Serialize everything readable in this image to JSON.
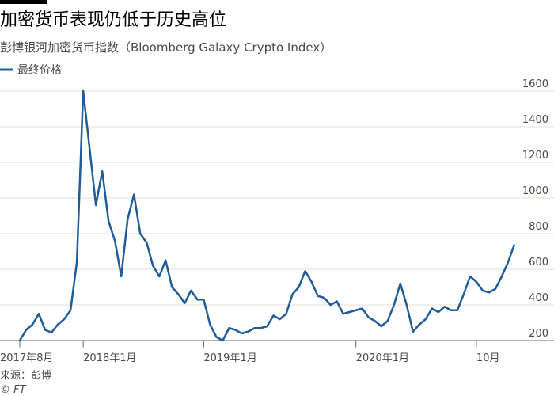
{
  "chart_data": {
    "type": "line",
    "title": "加密货币表现仍低于历史高位",
    "subtitle": "彭博银河加密货币指数（Bloomberg Galaxy Crypto Index）",
    "source": "来源：彭博",
    "credit": "© FT",
    "categories": [
      "2017年8月",
      null,
      null,
      null,
      null,
      null,
      null,
      null,
      null,
      null,
      "2018年1月",
      null,
      null,
      null,
      null,
      null,
      null,
      null,
      null,
      null,
      null,
      null,
      null,
      null,
      null,
      null,
      null,
      null,
      null,
      "2019年1月",
      null,
      null,
      null,
      null,
      null,
      null,
      null,
      null,
      null,
      null,
      null,
      null,
      null,
      null,
      null,
      null,
      null,
      null,
      null,
      null,
      null,
      null,
      null,
      "2020年1月",
      null,
      null,
      null,
      null,
      null,
      null,
      null,
      null,
      null,
      null,
      null,
      null,
      null,
      null,
      null,
      null,
      null,
      null,
      "10月",
      null,
      null,
      null,
      null,
      null,
      null
    ],
    "series": [
      {
        "name": "最终价格",
        "color": "#1f5c99",
        "values": [
          200,
          260,
          290,
          350,
          260,
          245,
          290,
          320,
          370,
          640,
          1600,
          1280,
          960,
          1150,
          870,
          760,
          560,
          880,
          1020,
          800,
          750,
          620,
          560,
          650,
          500,
          460,
          410,
          480,
          430,
          430,
          290,
          220,
          200,
          270,
          260,
          240,
          250,
          270,
          270,
          280,
          340,
          320,
          350,
          460,
          500,
          590,
          530,
          450,
          440,
          400,
          420,
          350,
          360,
          370,
          380,
          330,
          310,
          280,
          310,
          400,
          520,
          400,
          250,
          290,
          320,
          380,
          360,
          390,
          370,
          370,
          460,
          560,
          530,
          480,
          470,
          490,
          560,
          640,
          740
        ]
      }
    ],
    "ylim": [
      180,
      1680
    ],
    "yticks": [
      200,
      400,
      600,
      800,
      1000,
      1200,
      1400,
      1600
    ],
    "grid": true
  }
}
